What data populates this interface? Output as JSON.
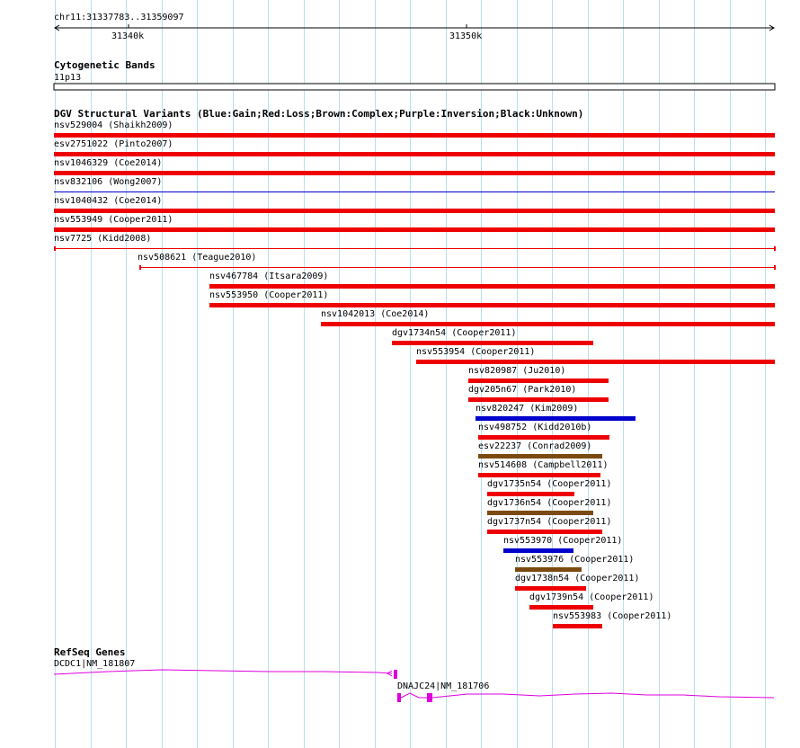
{
  "ruler": {
    "position_label": "chr11:31337783..31359097",
    "ticks": [
      "31340k",
      "31350k"
    ]
  },
  "cyto": {
    "title": "Cytogenetic Bands",
    "band": "11p13"
  },
  "dgv": {
    "title": "DGV Structural Variants (Blue:Gain;Red:Loss;Brown:Complex;Purple:Inversion;Black:Unknown)",
    "colors": {
      "loss": "#ee0000",
      "gain": "#0000cc",
      "complex": "#7a4a10"
    },
    "variants": [
      {
        "label": "nsv529004 (Shaikh2009)",
        "type": "loss",
        "style": "bar"
      },
      {
        "label": "esv2751022 (Pinto2007)",
        "type": "loss",
        "style": "bar"
      },
      {
        "label": "nsv1046329 (Coe2014)",
        "type": "loss",
        "style": "bar"
      },
      {
        "label": "nsv832106 (Wong2007)",
        "type": "gain",
        "style": "line"
      },
      {
        "label": "nsv1040432 (Coe2014)",
        "type": "loss",
        "style": "bar"
      },
      {
        "label": "nsv553949 (Cooper2011)",
        "type": "loss",
        "style": "bar"
      },
      {
        "label": "nsv7725 (Kidd2008)",
        "type": "loss",
        "style": "line"
      },
      {
        "label": "nsv508621 (Teague2010)",
        "type": "loss",
        "style": "line"
      },
      {
        "label": "nsv467784 (Itsara2009)",
        "type": "loss",
        "style": "bar"
      },
      {
        "label": "nsv553950 (Cooper2011)",
        "type": "loss",
        "style": "bar"
      },
      {
        "label": "nsv1042013 (Coe2014)",
        "type": "loss",
        "style": "bar"
      },
      {
        "label": "dgv1734n54 (Cooper2011)",
        "type": "loss",
        "style": "bar"
      },
      {
        "label": "nsv553954 (Cooper2011)",
        "type": "loss",
        "style": "bar"
      },
      {
        "label": "nsv820987 (Ju2010)",
        "type": "loss",
        "style": "bar"
      },
      {
        "label": "dgv205n67 (Park2010)",
        "type": "loss",
        "style": "bar"
      },
      {
        "label": "nsv820247 (Kim2009)",
        "type": "gain",
        "style": "bar"
      },
      {
        "label": "nsv498752 (Kidd2010b)",
        "type": "loss",
        "style": "bar"
      },
      {
        "label": "esv22237 (Conrad2009)",
        "type": "complex",
        "style": "bar"
      },
      {
        "label": "nsv514608 (Campbell2011)",
        "type": "loss",
        "style": "bar"
      },
      {
        "label": "dgv1735n54 (Cooper2011)",
        "type": "loss",
        "style": "bar"
      },
      {
        "label": "dgv1736n54 (Cooper2011)",
        "type": "complex",
        "style": "bar"
      },
      {
        "label": "dgv1737n54 (Cooper2011)",
        "type": "loss",
        "style": "bar"
      },
      {
        "label": "nsv553970 (Cooper2011)",
        "type": "gain",
        "style": "bar"
      },
      {
        "label": "nsv553976 (Cooper2011)",
        "type": "complex",
        "style": "bar"
      },
      {
        "label": "dgv1738n54 (Cooper2011)",
        "type": "loss",
        "style": "bar"
      },
      {
        "label": "dgv1739n54 (Cooper2011)",
        "type": "loss",
        "style": "bar"
      },
      {
        "label": "nsv553983 (Cooper2011)",
        "type": "loss",
        "style": "bar"
      }
    ]
  },
  "refseq": {
    "title": "RefSeq Genes",
    "gene_color": "#dd00dd",
    "genes": [
      {
        "label": "DCDC1|NM_181807"
      },
      {
        "label": "DNAJC24|NM_181706"
      }
    ]
  }
}
